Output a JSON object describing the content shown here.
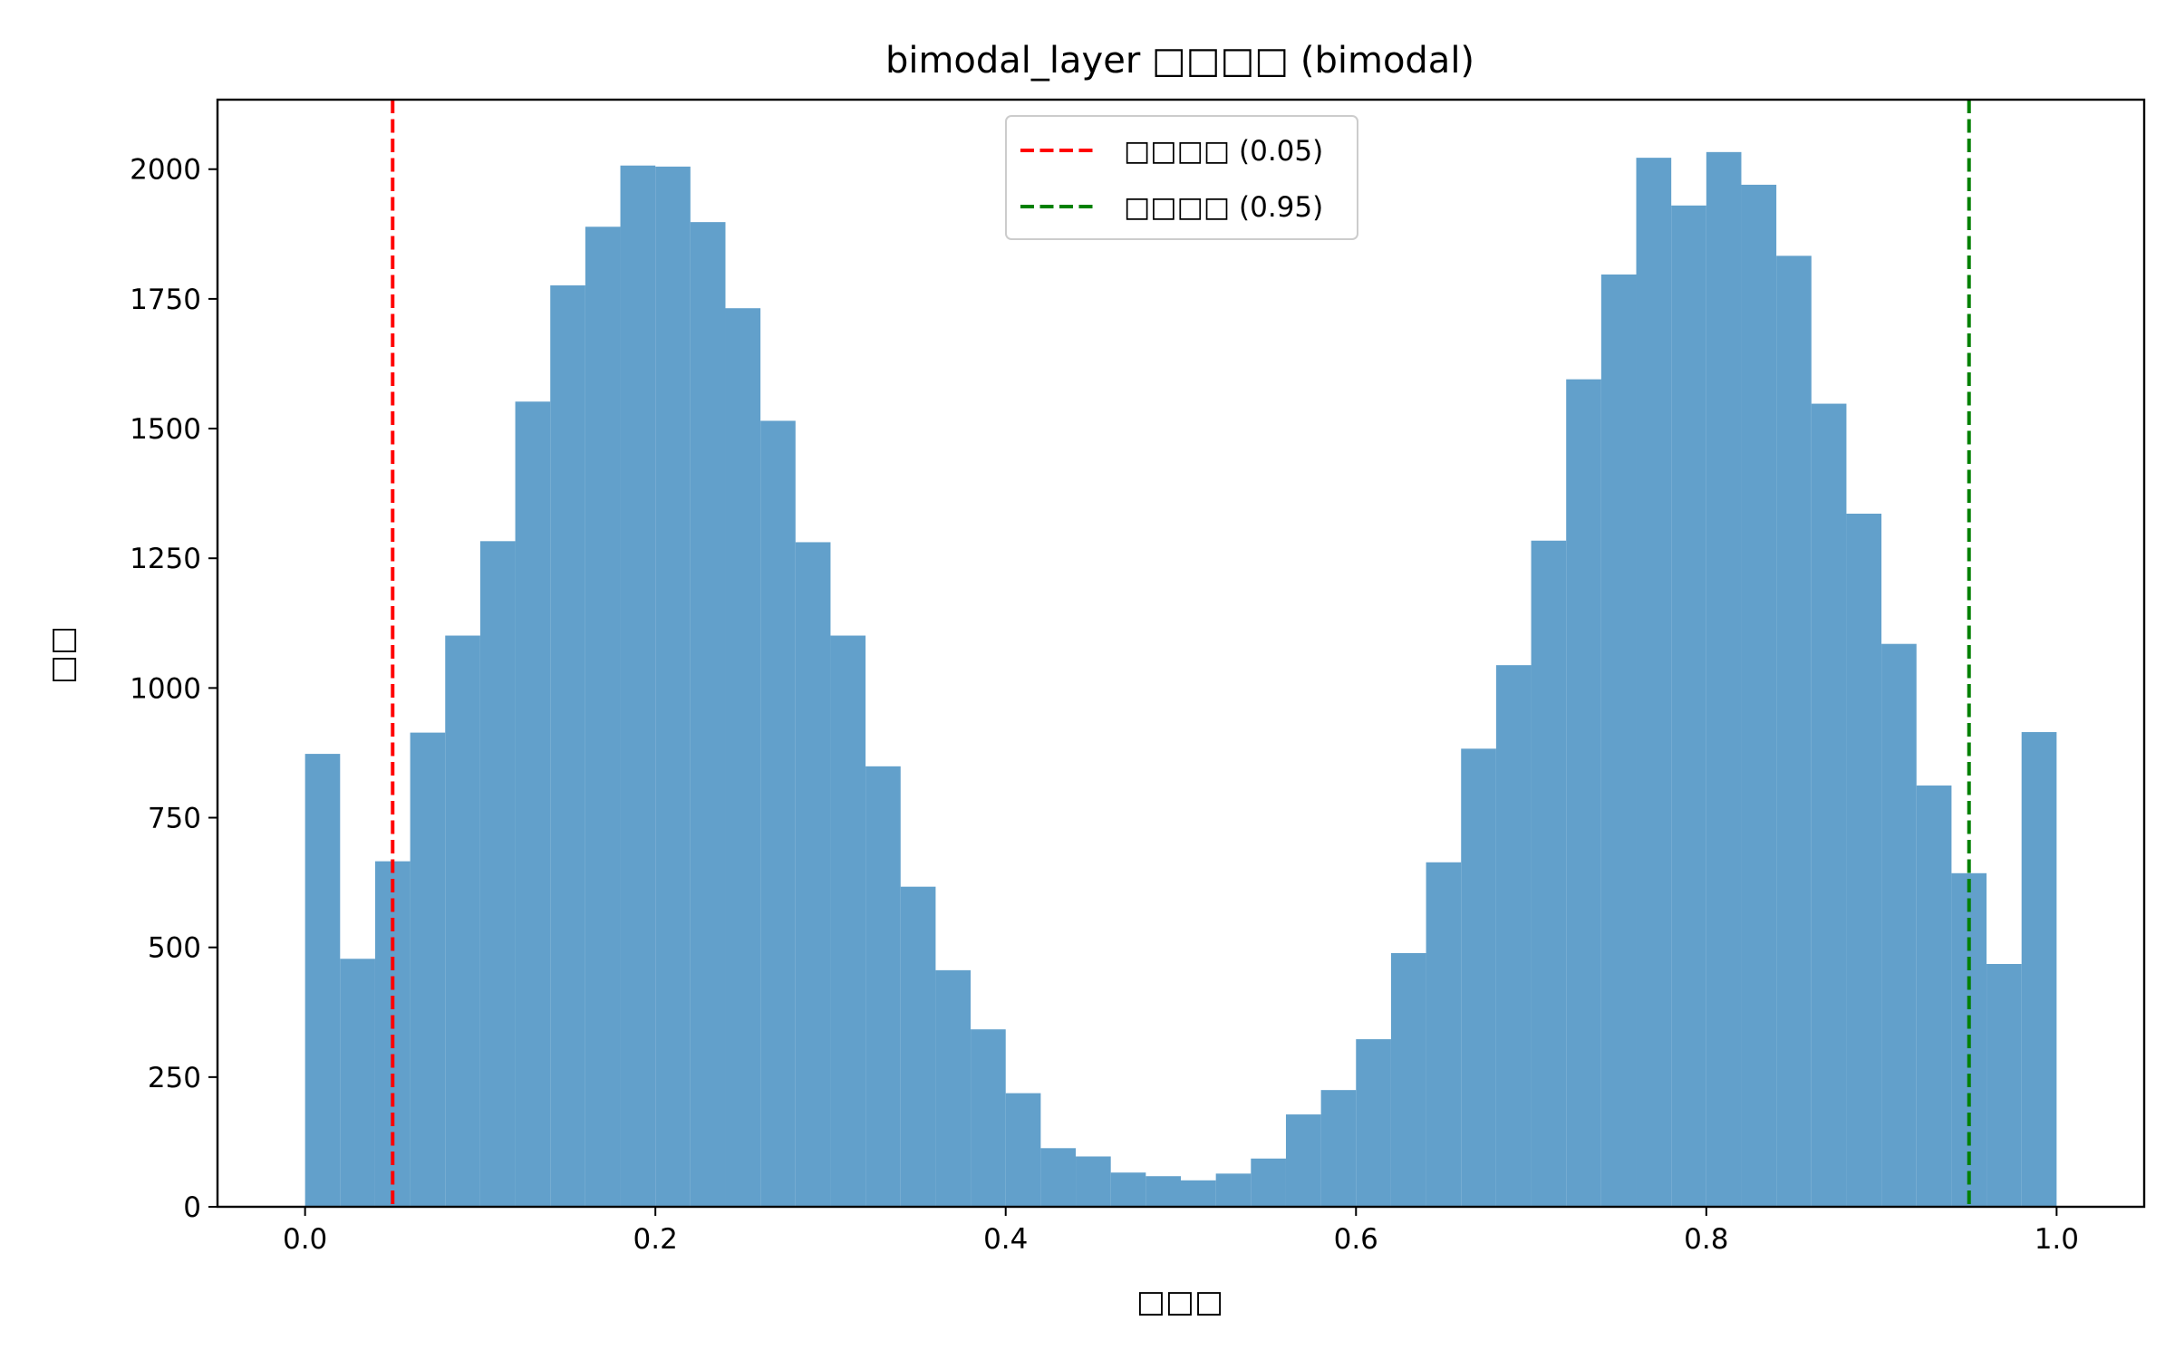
{
  "chart_data": {
    "type": "bar",
    "title": "bimodal_layer □□□□ (bimodal)",
    "xlabel": "□□□",
    "ylabel": "□□",
    "xlim": [
      -0.05,
      1.05
    ],
    "ylim": [
      0,
      2134
    ],
    "xticks": [
      "0.0",
      "0.2",
      "0.4",
      "0.6",
      "0.8",
      "1.0"
    ],
    "yticks": [
      "0",
      "250",
      "500",
      "750",
      "1000",
      "1250",
      "1500",
      "1750",
      "2000"
    ],
    "bin_edges": [
      0.0,
      0.02,
      0.04,
      0.06,
      0.08,
      0.1,
      0.12,
      0.14,
      0.16,
      0.18,
      0.2,
      0.22,
      0.24,
      0.26,
      0.28,
      0.3,
      0.32,
      0.34,
      0.36,
      0.38,
      0.4,
      0.42,
      0.44,
      0.46,
      0.48,
      0.5,
      0.52,
      0.54,
      0.56,
      0.58,
      0.6,
      0.62,
      0.64,
      0.66,
      0.68,
      0.7,
      0.72,
      0.74,
      0.76,
      0.78,
      0.8,
      0.82,
      0.84,
      0.86,
      0.88,
      0.9,
      0.92,
      0.94,
      0.96,
      0.98,
      1.0
    ],
    "values": [
      873,
      478,
      666,
      914,
      1101,
      1283,
      1552,
      1776,
      1889,
      2007,
      2005,
      1898,
      1732,
      1515,
      1281,
      1101,
      849,
      617,
      456,
      342,
      219,
      113,
      97,
      66,
      59,
      51,
      64,
      93,
      178,
      225,
      323,
      489,
      664,
      883,
      1044,
      1284,
      1595,
      1797,
      2022,
      1930,
      2033,
      1970,
      1833,
      1548,
      1336,
      1085,
      812,
      643,
      468,
      915
    ],
    "bar_color": "#62a0cb",
    "vlines": [
      {
        "x": 0.05,
        "color": "#ff0000",
        "style": "dashed",
        "label": "□□□□ (0.05)"
      },
      {
        "x": 0.95,
        "color": "#008000",
        "style": "dashed",
        "label": "□□□□ (0.95)"
      }
    ],
    "legend_position": "upper center",
    "grid": false
  }
}
